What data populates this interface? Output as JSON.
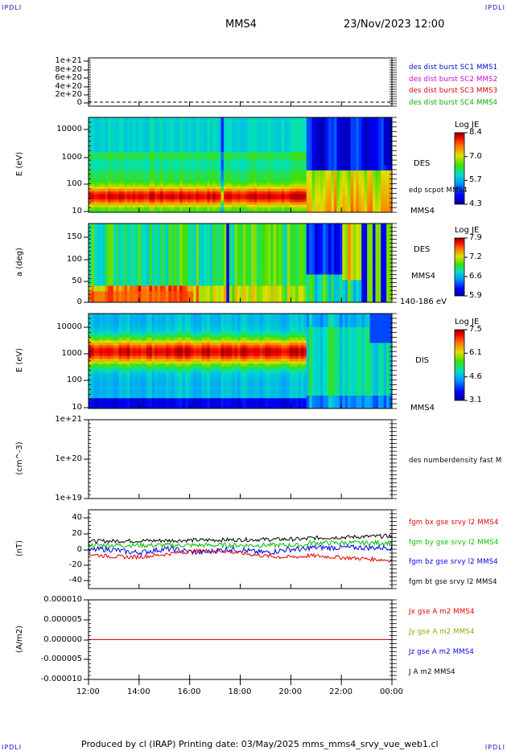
{
  "header": {
    "corner_left": "IPDLI",
    "corner_right": "IPDLI",
    "spacecraft": "MMS4",
    "datetime": "23/Nov/2023 12:00"
  },
  "footer": {
    "text": "Produced by cl (IRAP)   Printing date: 03/May/2025   mms_mms4_srvy_vue_web1.cl",
    "corner_left": "IPDLI",
    "corner_right": "IPDLI"
  },
  "chart_data": [
    {
      "type": "line",
      "panel": "burst availability",
      "ylim": [
        0,
        1e+21
      ],
      "yticks": [
        "1e+21",
        "8e+20",
        "6e+20",
        "4e+20",
        "2e+20",
        "0"
      ],
      "series": [
        {
          "name": "des dist burst SC1 MMS1",
          "color": "#0000d0"
        },
        {
          "name": "des dist burst SC2 MMS2",
          "color": "#d000d0"
        },
        {
          "name": "des dist burst SC3 MMS3",
          "color": "#d00000"
        },
        {
          "name": "des dist burst SC4 MMS4",
          "color": "#00b000"
        }
      ]
    },
    {
      "type": "heatmap",
      "panel": "DES energy spectrogram",
      "ylabel": "E (eV)",
      "yscale": "log",
      "ylim": [
        10,
        20000
      ],
      "yticks": [
        "10000",
        "1000",
        "100",
        "10"
      ],
      "right_labels": [
        "DES",
        "edp scpot MMS4",
        "MMS4"
      ],
      "colorbar": {
        "title": "Log JE",
        "ticks": [
          "8.4",
          "7.0",
          "5.7",
          "4.3"
        ],
        "range": [
          4.3,
          8.4
        ]
      }
    },
    {
      "type": "heatmap",
      "panel": "DES pitch angle",
      "ylabel": "a (deg)",
      "ylim": [
        0,
        180
      ],
      "yticks": [
        "150",
        "100",
        "50",
        "0"
      ],
      "right_labels": [
        "DES",
        "MMS4",
        "140-186 eV"
      ],
      "colorbar": {
        "title": "Log JE",
        "ticks": [
          "7.9",
          "7.2",
          "6.6",
          "5.9"
        ],
        "range": [
          5.9,
          7.9
        ]
      }
    },
    {
      "type": "heatmap",
      "panel": "DIS energy spectrogram",
      "ylabel": "E (eV)",
      "yscale": "log",
      "ylim": [
        10,
        20000
      ],
      "yticks": [
        "10000",
        "1000",
        "100",
        "10"
      ],
      "right_labels": [
        "DIS",
        "MMS4"
      ],
      "colorbar": {
        "title": "Log JE",
        "ticks": [
          "7.5",
          "6.1",
          "4.6",
          "3.1"
        ],
        "range": [
          3.1,
          7.5
        ]
      }
    },
    {
      "type": "line",
      "panel": "density",
      "ylabel": "(cm^-3)",
      "yscale": "log",
      "ylim": [
        1e+19,
        1e+21
      ],
      "yticks": [
        "1e+21",
        "1e+20",
        "1e+19"
      ],
      "series": [
        {
          "name": "des numberdensity fast M",
          "color": "#000000"
        }
      ]
    },
    {
      "type": "line",
      "panel": "magnetic field",
      "ylabel": "(nT)",
      "ylim": [
        -50,
        50
      ],
      "yticks": [
        "40",
        "20",
        "0",
        "-20",
        "-40"
      ],
      "series": [
        {
          "name": "fgm bx gse srvy l2 MMS4",
          "color": "#e00000"
        },
        {
          "name": "fgm by gse srvy l2 MMS4",
          "color": "#00c000"
        },
        {
          "name": "fgm bz gse srvy l2 MMS4",
          "color": "#0000e0"
        },
        {
          "name": "fgm bt gse srvy l2 MMS4",
          "color": "#000000"
        }
      ]
    },
    {
      "type": "line",
      "panel": "current density",
      "ylabel": "(A/m2)",
      "ylim": [
        -1e-05,
        1e-05
      ],
      "yticks": [
        "0.000010",
        "0.000005",
        "0.000000",
        "-0.000005",
        "-0.000010"
      ],
      "series": [
        {
          "name": "Jx gse A m2 MMS4",
          "color": "#e00000",
          "values": [
            0
          ]
        },
        {
          "name": "Jy gse A m2 MMS4",
          "color": "#80b000",
          "values": [
            0
          ]
        },
        {
          "name": "Jz gse A m2 MMS4",
          "color": "#0000e0",
          "values": [
            0
          ]
        },
        {
          "name": "J A m2 MMS4",
          "color": "#000000",
          "values": [
            0
          ]
        }
      ],
      "xticks": [
        "12:00",
        "14:00",
        "16:00",
        "18:00",
        "20:00",
        "22:00",
        "00:00"
      ]
    }
  ]
}
